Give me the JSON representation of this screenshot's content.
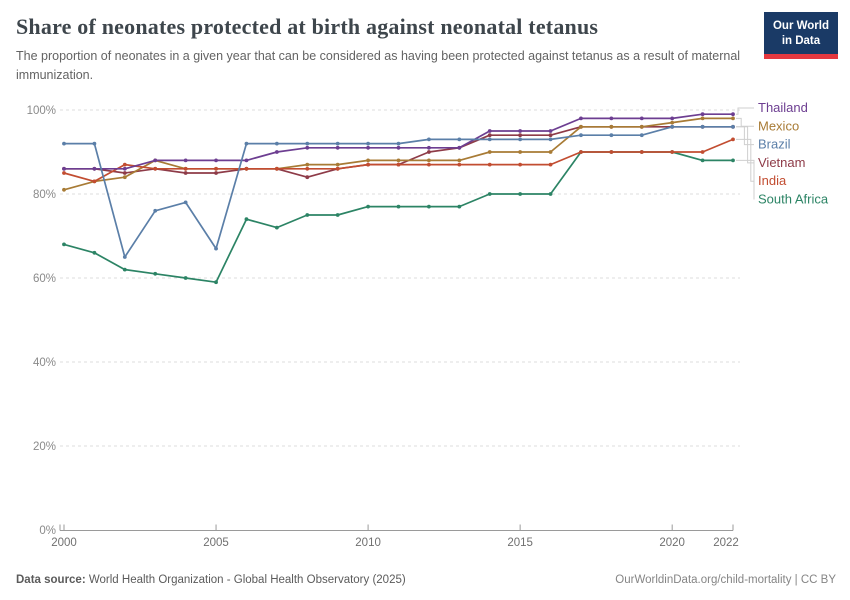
{
  "header": {
    "title": "Share of neonates protected at birth against neonatal tetanus",
    "subtitle": "The proportion of neonates in a given year that can be considered as having been protected against tetanus as a result of maternal immunization.",
    "logo": {
      "line1": "Our World",
      "line2": "in Data",
      "bg_color": "#1a3a66",
      "stripe_color": "#e5383f"
    }
  },
  "chart_data": {
    "type": "line",
    "x": [
      2000,
      2001,
      2002,
      2003,
      2004,
      2005,
      2006,
      2007,
      2008,
      2009,
      2010,
      2011,
      2012,
      2013,
      2014,
      2015,
      2016,
      2017,
      2018,
      2019,
      2020,
      2021,
      2022
    ],
    "series": [
      {
        "name": "Thailand",
        "color": "#6D3E91",
        "values": [
          86,
          86,
          86,
          88,
          88,
          88,
          88,
          90,
          91,
          91,
          91,
          91,
          91,
          91,
          95,
          95,
          95,
          98,
          98,
          98,
          98,
          99,
          99
        ]
      },
      {
        "name": "Mexico",
        "color": "#A87B35",
        "values": [
          81,
          83,
          84,
          88,
          86,
          86,
          86,
          86,
          87,
          87,
          88,
          88,
          88,
          88,
          90,
          90,
          90,
          96,
          96,
          96,
          97,
          98,
          98
        ]
      },
      {
        "name": "Brazil",
        "color": "#5B7FA8",
        "values": [
          92,
          92,
          65,
          76,
          78,
          67,
          92,
          92,
          92,
          92,
          92,
          92,
          93,
          93,
          93,
          93,
          93,
          94,
          94,
          94,
          96,
          96,
          96
        ]
      },
      {
        "name": "Vietnam",
        "color": "#8E3B48",
        "values": [
          86,
          86,
          85,
          86,
          85,
          85,
          86,
          86,
          84,
          86,
          87,
          87,
          90,
          91,
          94,
          94,
          94,
          96,
          96,
          96,
          96,
          96,
          96
        ]
      },
      {
        "name": "India",
        "color": "#C24D31",
        "values": [
          85,
          83,
          87,
          86,
          86,
          86,
          86,
          86,
          86,
          86,
          87,
          87,
          87,
          87,
          87,
          87,
          87,
          90,
          90,
          90,
          90,
          90,
          93
        ]
      },
      {
        "name": "South Africa",
        "color": "#2C8465",
        "values": [
          68,
          66,
          62,
          61,
          60,
          59,
          74,
          72,
          75,
          75,
          77,
          77,
          77,
          77,
          80,
          80,
          80,
          90,
          90,
          90,
          90,
          88,
          88
        ]
      }
    ],
    "draw_order": [
      3,
      1,
      5,
      4,
      0,
      2
    ],
    "title": "Share of neonates protected at birth against neonatal tetanus",
    "xlabel": "",
    "ylabel": "",
    "ylim": [
      0,
      100
    ],
    "yticks": [
      0,
      20,
      40,
      60,
      80,
      100
    ],
    "ytick_suffix": "%",
    "xticks": [
      2000,
      2005,
      2010,
      2015,
      2020,
      2022
    ],
    "grid": "horizontal-dashed",
    "legend_position": "right",
    "gridline_color": "#dcdcdc",
    "axis_color": "#9a9a9a",
    "connector_color": "#cfcfcf"
  },
  "footer": {
    "source_label": "Data source:",
    "source_text": "World Health Organization - Global Health Observatory (2025)",
    "credit": "OurWorldinData.org/child-mortality | CC BY"
  }
}
